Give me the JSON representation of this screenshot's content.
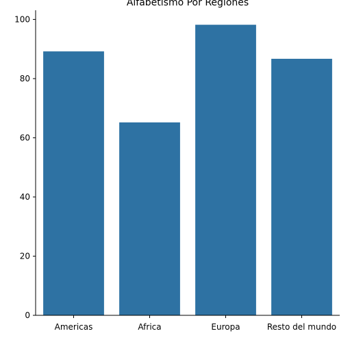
{
  "chart_data": {
    "type": "bar",
    "title": "Alfabetismo Por Regiones",
    "xlabel": "",
    "ylabel": "",
    "categories": [
      "Americas",
      "Africa",
      "Europa",
      "Resto del mundo"
    ],
    "values": [
      89.2,
      65.2,
      98.2,
      86.7
    ],
    "ylim": [
      0,
      103.1
    ],
    "yticks": [
      0,
      20,
      40,
      60,
      80,
      100
    ],
    "bar_color": "#2e72a3",
    "grid": false,
    "legend": "none"
  }
}
